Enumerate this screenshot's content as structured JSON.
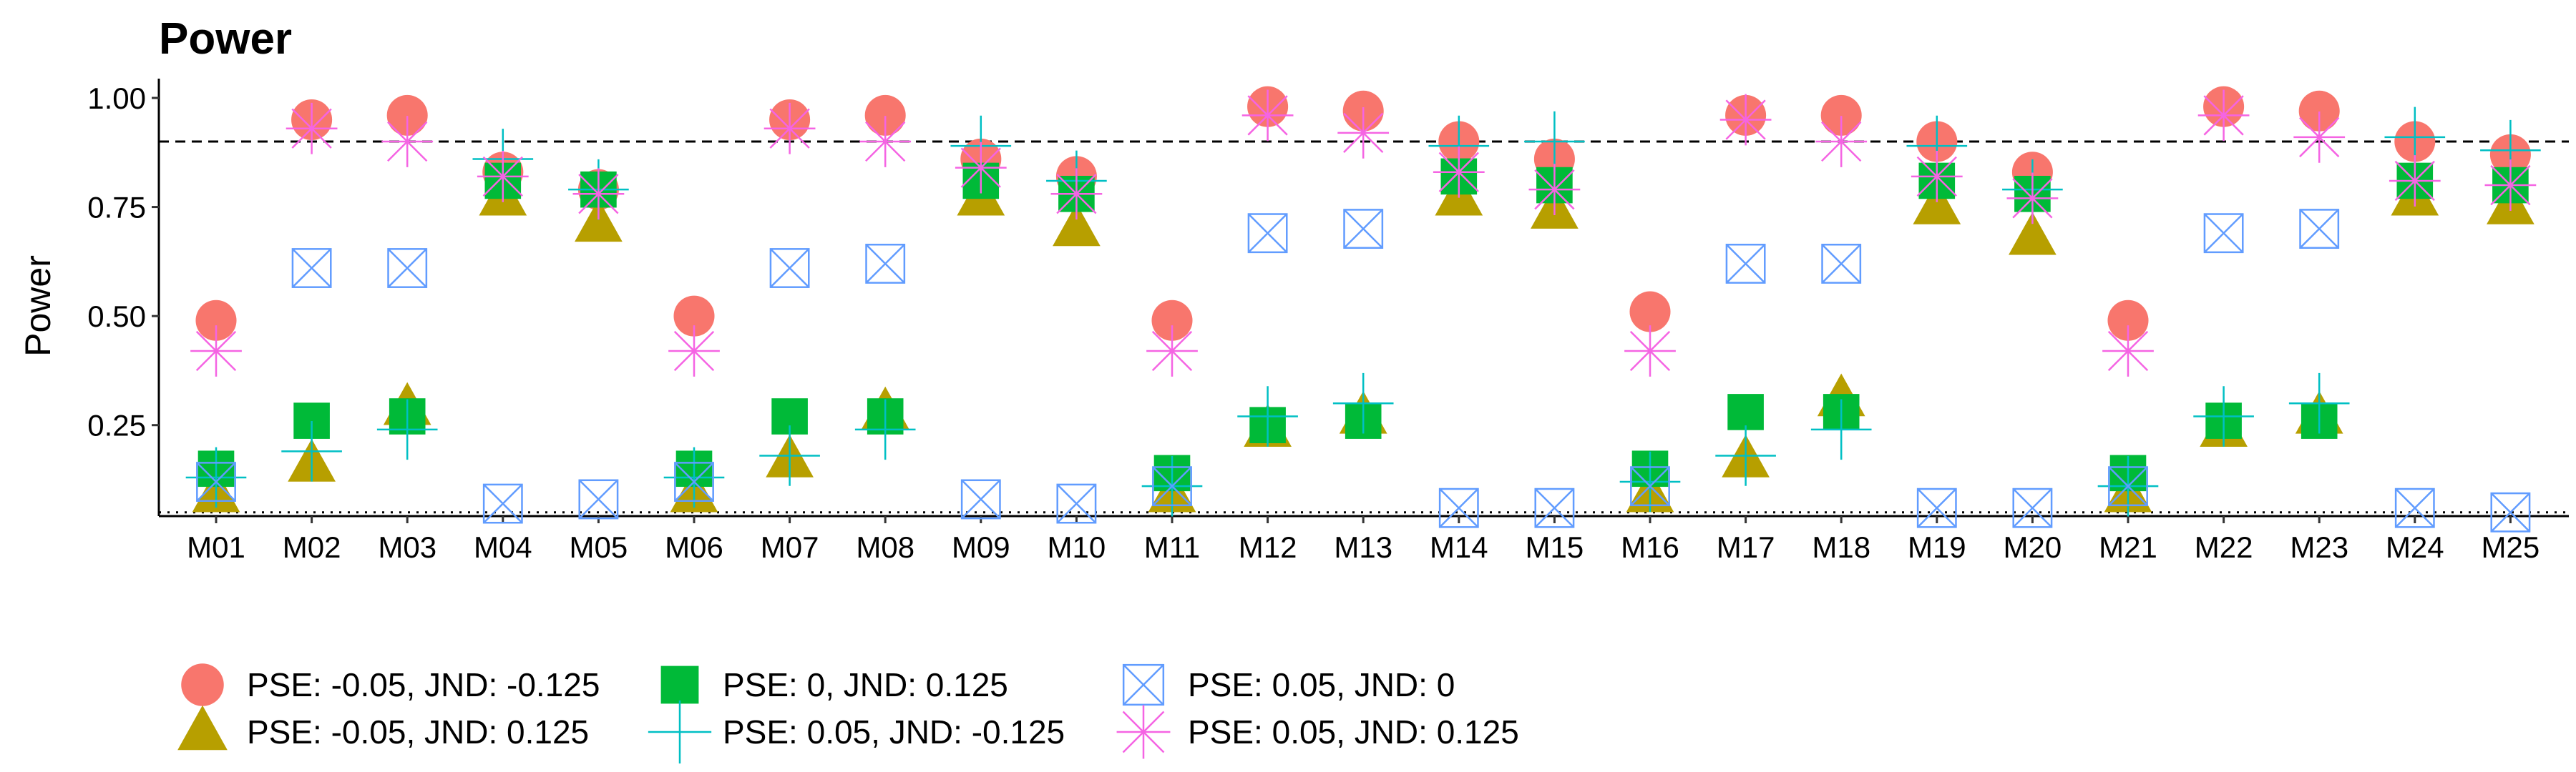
{
  "chart_data": {
    "type": "scatter",
    "title": "Power",
    "xlabel": "",
    "ylabel": "Power",
    "ylim": [
      0.0,
      1.02
    ],
    "yticks": [
      0.25,
      0.5,
      0.75,
      1.0
    ],
    "ytick_labels": [
      "0.25",
      "0.50",
      "0.75",
      "1.00"
    ],
    "categories": [
      "M01",
      "M02",
      "M03",
      "M04",
      "M05",
      "M06",
      "M07",
      "M08",
      "M09",
      "M10",
      "M11",
      "M12",
      "M13",
      "M14",
      "M15",
      "M16",
      "M17",
      "M18",
      "M19",
      "M20",
      "M21",
      "M22",
      "M23",
      "M24",
      "M25"
    ],
    "reference_lines": [
      {
        "y": 0.9,
        "style": "dashed"
      },
      {
        "y": 0.05,
        "style": "dotted"
      }
    ],
    "grid": false,
    "legend_position": "bottom",
    "series": [
      {
        "name": "PSE: -0.05, JND: -0.125",
        "marker": "circle",
        "color": "#F8766D",
        "values": [
          0.49,
          0.95,
          0.96,
          0.83,
          0.79,
          0.5,
          0.95,
          0.96,
          0.86,
          0.82,
          0.49,
          0.98,
          0.97,
          0.9,
          0.86,
          0.51,
          0.96,
          0.96,
          0.9,
          0.83,
          0.49,
          0.98,
          0.97,
          0.9,
          0.87
        ]
      },
      {
        "name": "PSE: -0.05, JND: 0.125",
        "marker": "triangle",
        "color": "#B79F00",
        "values": [
          0.09,
          0.16,
          0.29,
          0.77,
          0.71,
          0.09,
          0.17,
          0.28,
          0.77,
          0.7,
          0.09,
          0.24,
          0.27,
          0.77,
          0.74,
          0.09,
          0.17,
          0.31,
          0.75,
          0.68,
          0.09,
          0.24,
          0.27,
          0.77,
          0.75
        ]
      },
      {
        "name": "PSE: 0, JND: 0.125",
        "marker": "square",
        "color": "#00BA38",
        "values": [
          0.15,
          0.26,
          0.27,
          0.81,
          0.79,
          0.15,
          0.27,
          0.27,
          0.81,
          0.78,
          0.14,
          0.25,
          0.26,
          0.82,
          0.8,
          0.15,
          0.28,
          0.28,
          0.81,
          0.78,
          0.14,
          0.26,
          0.26,
          0.81,
          0.8
        ]
      },
      {
        "name": "PSE: 0.05, JND: -0.125",
        "marker": "plus",
        "color": "#00BFC4",
        "values": [
          0.13,
          0.19,
          0.24,
          0.86,
          0.79,
          0.13,
          0.18,
          0.24,
          0.89,
          0.81,
          0.11,
          0.27,
          0.3,
          0.89,
          0.9,
          0.12,
          0.18,
          0.24,
          0.89,
          0.79,
          0.11,
          0.27,
          0.3,
          0.91,
          0.88
        ]
      },
      {
        "name": "PSE: 0.05, JND: 0",
        "marker": "boxcross",
        "color": "#619CFF",
        "values": [
          0.12,
          0.61,
          0.61,
          0.07,
          0.08,
          0.12,
          0.61,
          0.62,
          0.08,
          0.07,
          0.11,
          0.69,
          0.7,
          0.06,
          0.06,
          0.11,
          0.62,
          0.62,
          0.06,
          0.06,
          0.11,
          0.69,
          0.7,
          0.06,
          0.05
        ]
      },
      {
        "name": "PSE: 0.05, JND: 0.125",
        "marker": "asterisk",
        "color": "#F564E3",
        "values": [
          0.42,
          0.93,
          0.9,
          0.82,
          0.78,
          0.42,
          0.93,
          0.9,
          0.84,
          0.78,
          0.42,
          0.96,
          0.92,
          0.83,
          0.79,
          0.42,
          0.95,
          0.9,
          0.82,
          0.77,
          0.42,
          0.96,
          0.91,
          0.81,
          0.8
        ]
      }
    ]
  }
}
